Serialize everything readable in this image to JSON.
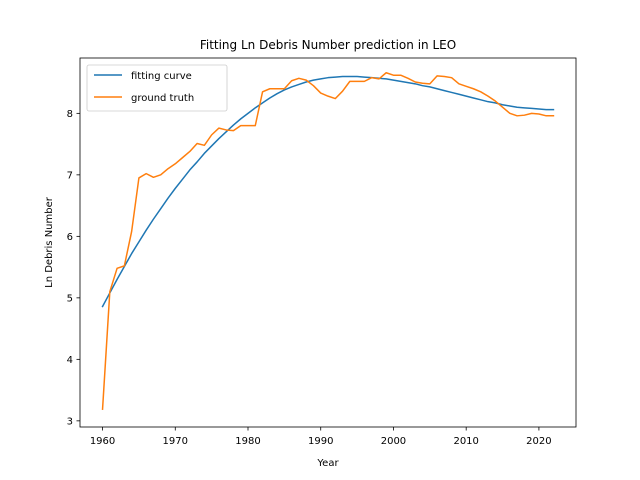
{
  "chart_data": {
    "type": "line",
    "title": "Fitting Ln Debris Number prediction in LEO",
    "xlabel": "Year",
    "ylabel": "Ln Debris Number",
    "xlim": [
      1956.9,
      2025.1
    ],
    "ylim": [
      2.9,
      8.9
    ],
    "xticks": [
      1960,
      1970,
      1980,
      1990,
      2000,
      2010,
      2020
    ],
    "yticks": [
      3,
      4,
      5,
      6,
      7,
      8
    ],
    "grid": false,
    "legend_position": "top-left",
    "series": [
      {
        "name": "fitting curve",
        "color": "#1f77b4",
        "x": [
          1960,
          1961,
          1962,
          1963,
          1964,
          1965,
          1966,
          1967,
          1968,
          1969,
          1970,
          1971,
          1972,
          1973,
          1974,
          1975,
          1976,
          1977,
          1978,
          1979,
          1980,
          1981,
          1982,
          1983,
          1984,
          1985,
          1986,
          1987,
          1988,
          1989,
          1990,
          1991,
          1992,
          1993,
          1994,
          1995,
          1996,
          1997,
          1998,
          1999,
          2000,
          2001,
          2002,
          2003,
          2004,
          2005,
          2006,
          2007,
          2008,
          2009,
          2010,
          2011,
          2012,
          2013,
          2014,
          2015,
          2016,
          2017,
          2018,
          2019,
          2020,
          2021,
          2022
        ],
        "y": [
          4.86,
          5.08,
          5.3,
          5.51,
          5.72,
          5.91,
          6.1,
          6.28,
          6.45,
          6.62,
          6.78,
          6.93,
          7.08,
          7.21,
          7.35,
          7.47,
          7.59,
          7.7,
          7.81,
          7.91,
          8.0,
          8.09,
          8.17,
          8.25,
          8.32,
          8.38,
          8.43,
          8.47,
          8.51,
          8.54,
          8.56,
          8.58,
          8.59,
          8.6,
          8.6,
          8.6,
          8.59,
          8.58,
          8.57,
          8.56,
          8.54,
          8.52,
          8.5,
          8.48,
          8.45,
          8.43,
          8.4,
          8.37,
          8.34,
          8.31,
          8.28,
          8.25,
          8.22,
          8.19,
          8.17,
          8.14,
          8.12,
          8.1,
          8.09,
          8.08,
          8.07,
          8.06,
          8.06
        ]
      },
      {
        "name": "ground truth",
        "color": "#ff7f0e",
        "x": [
          1960,
          1961,
          1962,
          1963,
          1964,
          1965,
          1966,
          1967,
          1968,
          1969,
          1970,
          1971,
          1972,
          1973,
          1974,
          1975,
          1976,
          1977,
          1978,
          1979,
          1980,
          1981,
          1982,
          1983,
          1984,
          1985,
          1986,
          1987,
          1988,
          1989,
          1990,
          1991,
          1992,
          1993,
          1994,
          1995,
          1996,
          1997,
          1998,
          1999,
          2000,
          2001,
          2002,
          2003,
          2004,
          2005,
          2006,
          2007,
          2008,
          2009,
          2010,
          2011,
          2012,
          2013,
          2014,
          2015,
          2016,
          2017,
          2018,
          2019,
          2020,
          2021,
          2022
        ],
        "y": [
          3.19,
          5.1,
          5.48,
          5.52,
          6.08,
          6.95,
          7.02,
          6.96,
          7.0,
          7.1,
          7.18,
          7.28,
          7.38,
          7.51,
          7.48,
          7.65,
          7.76,
          7.73,
          7.72,
          7.8,
          7.8,
          7.8,
          8.35,
          8.4,
          8.4,
          8.4,
          8.53,
          8.57,
          8.54,
          8.45,
          8.33,
          8.28,
          8.24,
          8.36,
          8.52,
          8.52,
          8.52,
          8.58,
          8.56,
          8.66,
          8.62,
          8.62,
          8.57,
          8.51,
          8.49,
          8.48,
          8.61,
          8.6,
          8.58,
          8.48,
          8.44,
          8.4,
          8.35,
          8.28,
          8.2,
          8.1,
          8.0,
          7.96,
          7.97,
          8.0,
          7.99,
          7.96,
          7.96
        ]
      }
    ]
  }
}
